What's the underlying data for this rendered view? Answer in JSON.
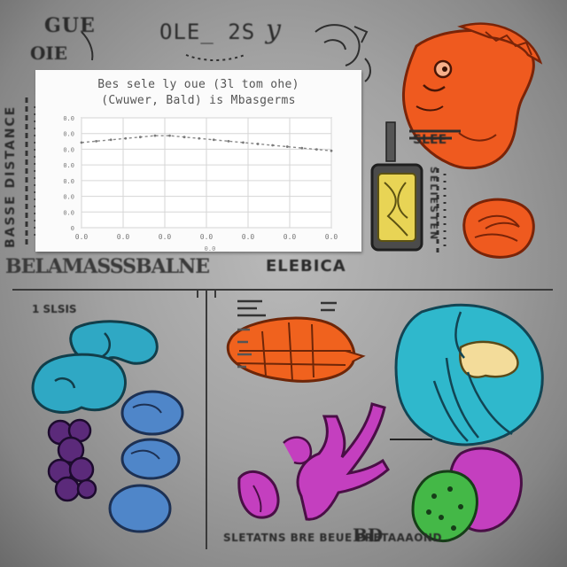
{
  "chart": {
    "title_line1": "Bes sele ly oue (3l tom ohe)",
    "title_line2": "(Cwuwer, Bald) is Mbasgerms",
    "y_ticks": [
      "0.0",
      "0.0",
      "0.0",
      "0.0",
      "0.0",
      "0.0",
      "0.0",
      "0"
    ],
    "x_ticks": [
      "0.0",
      "0.0",
      "0.0",
      "0.0",
      "0.0",
      "0.0",
      "0.0"
    ],
    "x_axis_label": "0.0"
  },
  "chart_data": {
    "type": "line",
    "title": "Bes sele ly oue (3l tom ohe) (Cwuwer, Bald) is Mbasgerms",
    "xlabel": "",
    "ylabel": "",
    "x": [
      0,
      1,
      2,
      3,
      4,
      5,
      6,
      7,
      8,
      9,
      10,
      11,
      12,
      13,
      14,
      15,
      16,
      17
    ],
    "series": [
      {
        "values": [
          6.2,
          6.3,
          6.4,
          6.5,
          6.6,
          6.7,
          6.7,
          6.6,
          6.5,
          6.4,
          6.3,
          6.2,
          6.1,
          6.0,
          5.9,
          5.8,
          5.7,
          5.6
        ]
      }
    ],
    "ylim": [
      0,
      8
    ],
    "grid": true
  },
  "labels": {
    "top_left_scribble": "GUE",
    "top_left_side": "OIE",
    "top_center_scribble": "OLE_ 2S",
    "top_right_glyph": "y",
    "left_column_text": "BASSE DISTANCE",
    "bottom_left_caption": "BELAMASSSBALNE",
    "bottom_right_caption": "ELEBICA",
    "right_column_text": "SELIESTEN",
    "right_small_text": "SLEE",
    "panel_bl_label": "1 SLSIS",
    "panel_br_footer": "SLETATNS BRE BEUE PRETAAAOND",
    "panel_br_footer_end": "BD"
  },
  "colors": {
    "background": "#a6a6a6",
    "orange": "#f0551a",
    "teal": "#2fb3c6",
    "blue": "#4f86c9",
    "purple": "#5a2a78",
    "magenta": "#c23bbb",
    "green": "#3fb545",
    "yellow": "#e8d455"
  }
}
